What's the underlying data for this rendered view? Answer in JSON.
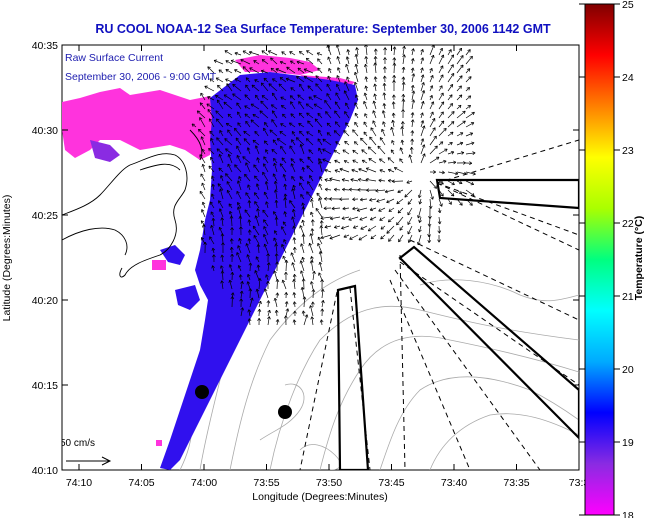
{
  "title": "RU COOL  NOAA-12  Sea Surface Temperature:  September 30, 2006 1142 GMT",
  "overlay": {
    "line1": "Raw Surface Current",
    "line2": "September 30, 2006 - 9:00 GMT"
  },
  "axes": {
    "xlabel": "Longitude (Degrees:Minutes)",
    "ylabel": "Latitude (Degrees:Minutes)",
    "x_ticks": [
      "74:10",
      "74:05",
      "74:00",
      "73:55",
      "73:50",
      "73:45",
      "73:40",
      "73:35",
      "73:3"
    ],
    "y_ticks": [
      "40:35",
      "40:30",
      "40:25",
      "40:20",
      "40:15",
      "40:10"
    ]
  },
  "scale_label": "50 cm/s",
  "colorbar": {
    "label": "Temperature (°C)",
    "ticks": [
      "25",
      "24",
      "23",
      "22",
      "21",
      "20",
      "19",
      "18"
    ],
    "stops": [
      "#ff00ff",
      "#8a2be2",
      "#0000ff",
      "#00aaff",
      "#00ffff",
      "#00ff80",
      "#aaff00",
      "#ffff00",
      "#ff8000",
      "#ff0000",
      "#800000"
    ]
  },
  "colors": {
    "sst_warm": "#3010ee",
    "sst_cool": "#ff33dd"
  }
}
